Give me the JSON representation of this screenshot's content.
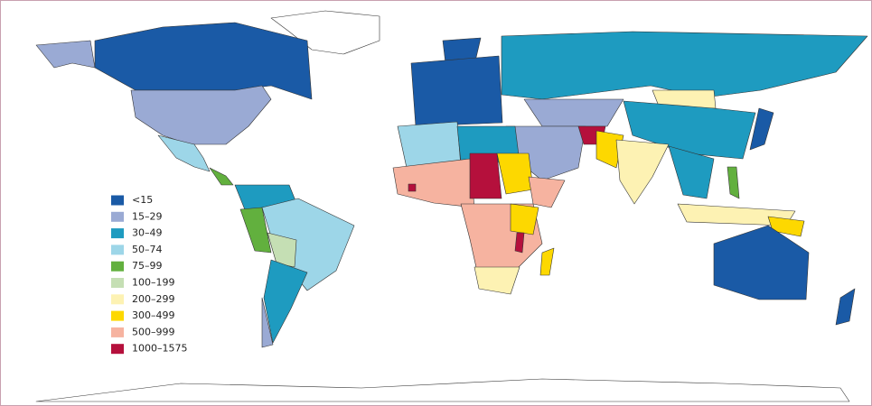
{
  "legend": {
    "items": [
      {
        "label": "<15",
        "color": "#1a5aa6"
      },
      {
        "label": "15–29",
        "color": "#9aaad4"
      },
      {
        "label": "30–49",
        "color": "#1e9bc0"
      },
      {
        "label": "50–74",
        "color": "#9dd6e8"
      },
      {
        "label": "75–99",
        "color": "#62b03e"
      },
      {
        "label": "100–199",
        "color": "#c5dfb4"
      },
      {
        "label": "200–299",
        "color": "#fdf2b3"
      },
      {
        "label": "300–499",
        "color": "#fdd800"
      },
      {
        "label": "500–999",
        "color": "#f6b3a0"
      },
      {
        "label": "1000–1575",
        "color": "#b5103c"
      }
    ]
  }
}
